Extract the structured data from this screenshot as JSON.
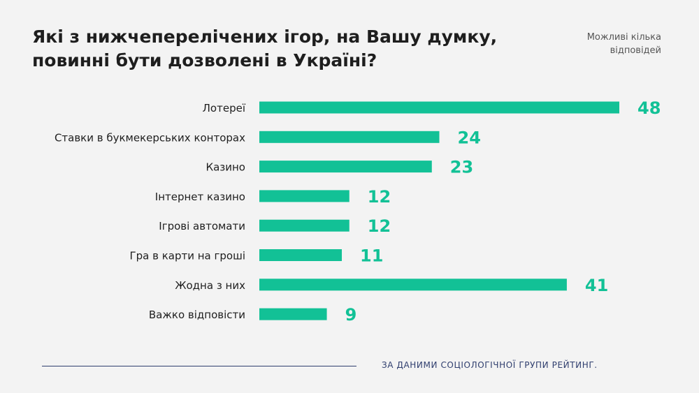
{
  "header": {
    "title_line1": "Які з нижчеперелічених ігор, на Вашу думку,",
    "title_line2": "повинні бути дозволені в Україні?",
    "note_line1": "Можливі кілька",
    "note_line2": "відповідей"
  },
  "footer": {
    "source": "ЗА ДАНИМИ СОЦІОЛОГІЧНОЇ ГРУПИ РЕЙТИНГ."
  },
  "colors": {
    "bar": "#12c196",
    "value": "#12c196",
    "text": "#1e1e1e",
    "footer": "#2f3e6e"
  },
  "chart_data": {
    "type": "bar",
    "orientation": "horizontal",
    "categories": [
      "Лотереї",
      "Ставки в букмекерських конторах",
      "Казино",
      "Інтернет казино",
      "Ігрові автомати",
      "Гра в карти на гроші",
      "Жодна з них",
      "Важко відповісти"
    ],
    "values": [
      48,
      24,
      23,
      12,
      12,
      11,
      41,
      9
    ],
    "xlim": [
      0,
      48
    ],
    "grid": false,
    "data_labels": true
  }
}
